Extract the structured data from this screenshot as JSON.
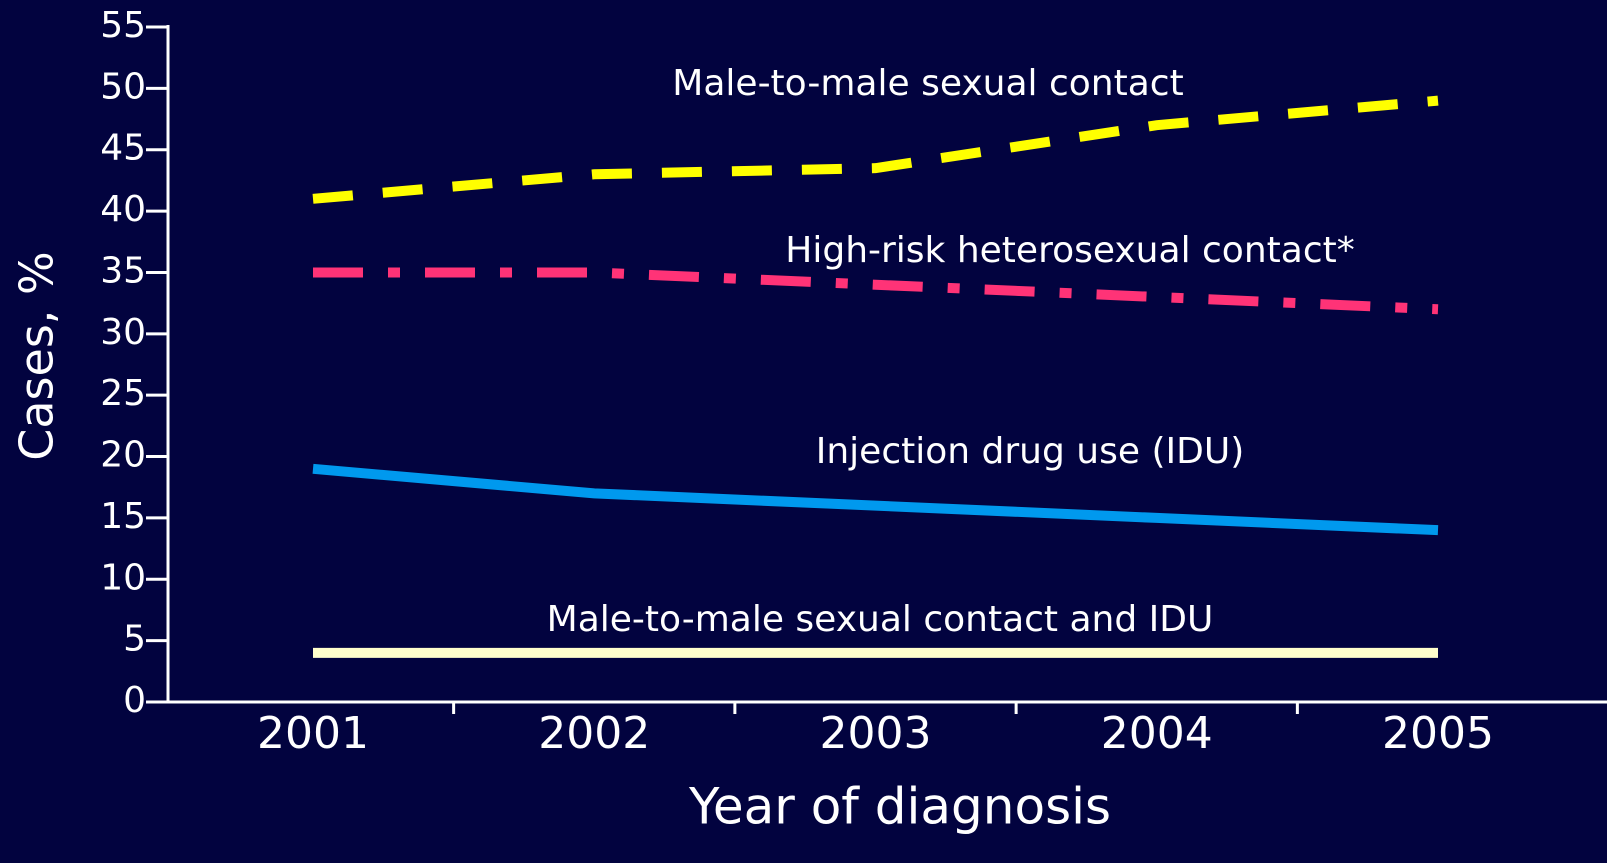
{
  "chart_data": {
    "type": "line",
    "x_label": "Year of diagnosis",
    "y_label": "Cases, %",
    "categories": [
      "2001",
      "2002",
      "2003",
      "2004",
      "2005"
    ],
    "series": [
      {
        "name": "Male-to-male sexual contact",
        "color": "#ffff00",
        "dash": "dashed",
        "values": [
          41,
          43,
          43.5,
          47,
          49
        ]
      },
      {
        "name": "High-risk heterosexual contact*",
        "color": "#ff3377",
        "dash": "dashdot",
        "values": [
          35,
          35,
          34,
          33,
          32
        ]
      },
      {
        "name": "Injection drug use (IDU)",
        "color": "#0099ee",
        "dash": "solid",
        "values": [
          19,
          17,
          16,
          15,
          14
        ]
      },
      {
        "name": "Male-to-male sexual contact and IDU",
        "color": "#ffffcc",
        "dash": "solid",
        "values": [
          4,
          4,
          4,
          4,
          4
        ]
      }
    ],
    "ylim": [
      0,
      55
    ],
    "yticks": [
      0,
      5,
      10,
      15,
      20,
      25,
      30,
      35,
      40,
      45,
      50,
      55
    ],
    "grid": false
  }
}
